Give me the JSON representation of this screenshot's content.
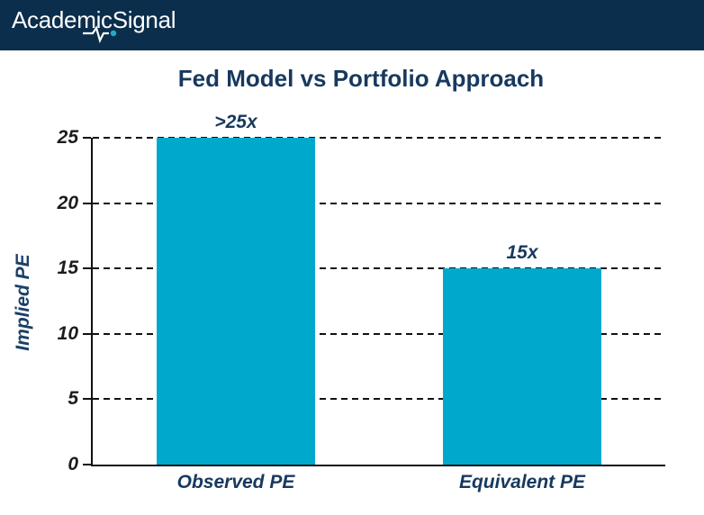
{
  "header": {
    "brand": "AcademicSignal",
    "logo_icon": "heartbeat-pulse-icon"
  },
  "colors": {
    "header_bg": "#0b2e4c",
    "navy_text": "#17395e",
    "ylabel_text": "#1b4066",
    "axis_text": "#1c1c1c",
    "bar": "#00a9cc",
    "logo_dot": "#29a8c9"
  },
  "chart_data": {
    "type": "bar",
    "title": "Fed Model vs Portfolio Approach",
    "xlabel": "",
    "ylabel": "Implied PE",
    "categories": [
      "Observed PE",
      "Equivalent PE"
    ],
    "values": [
      25,
      15
    ],
    "bar_labels": [
      ">25x",
      "15x"
    ],
    "yticks": [
      0,
      5,
      10,
      15,
      20,
      25
    ],
    "ylim": [
      0,
      25
    ],
    "grid": "horizontal-dashed",
    "legend": "none"
  }
}
